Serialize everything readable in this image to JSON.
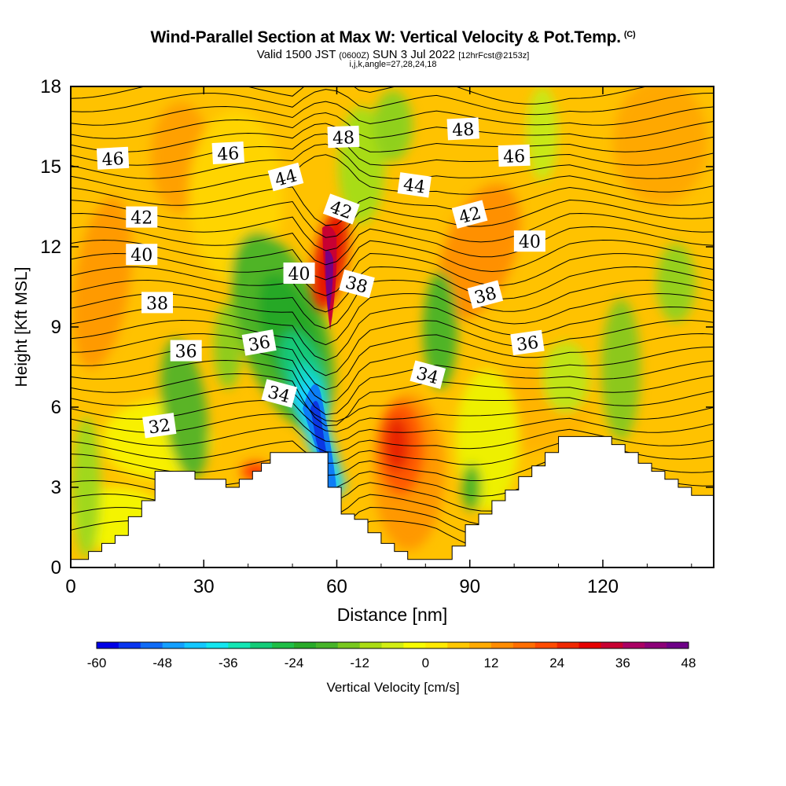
{
  "header": {
    "title": "Wind-Parallel Section at Max W: Vertical Velocity & Pot.Temp.",
    "copyright": "(C)",
    "valid_prefix": "Valid 1500 JST",
    "valid_utc": "(0600Z)",
    "valid_date": "SUN 3 Jul 2022",
    "forecast": "[12hrFcst@2153z]",
    "indices": "i,j,k,angle=27,28,24,18"
  },
  "chart_data": {
    "type": "heatmap",
    "title": "Wind-Parallel Section at Max W: Vertical Velocity & Pot.Temp.",
    "xlabel": "Distance [nm]",
    "ylabel": "Height [Kft MSL]",
    "xlim": [
      0,
      145
    ],
    "ylim": [
      0,
      18
    ],
    "xticks": [
      0,
      30,
      60,
      90,
      120
    ],
    "yticks": [
      0,
      3,
      6,
      9,
      12,
      15,
      18
    ],
    "colorbar": {
      "label": "Vertical Velocity [cm/s]",
      "min": -60,
      "max": 48,
      "step": 4,
      "tick_labels": [
        -60,
        -48,
        -36,
        -24,
        -12,
        0,
        12,
        24,
        36,
        48
      ],
      "colors": [
        "#0000e6",
        "#0a36f0",
        "#0f6cf7",
        "#14a0ff",
        "#14c8ff",
        "#14e6f0",
        "#14e6b4",
        "#14cc78",
        "#1ebe46",
        "#28aa28",
        "#46b428",
        "#78c81e",
        "#aadc14",
        "#d2ee14",
        "#f8fc00",
        "#ffea00",
        "#ffc800",
        "#ffaa00",
        "#ff8c00",
        "#ff6e00",
        "#ff4b00",
        "#f02800",
        "#e60000",
        "#c80032",
        "#aa0064",
        "#8c0078",
        "#6e0087"
      ]
    },
    "terrain_profile": [
      [
        0,
        0.3
      ],
      [
        4,
        0.3
      ],
      [
        4,
        0.6
      ],
      [
        7,
        0.6
      ],
      [
        7,
        0.9
      ],
      [
        10,
        0.9
      ],
      [
        10,
        1.2
      ],
      [
        13,
        1.2
      ],
      [
        13,
        1.9
      ],
      [
        16,
        1.9
      ],
      [
        16,
        2.5
      ],
      [
        19,
        2.5
      ],
      [
        19,
        3.6
      ],
      [
        28,
        3.6
      ],
      [
        28,
        3.3
      ],
      [
        35,
        3.3
      ],
      [
        35,
        3.0
      ],
      [
        38,
        3.0
      ],
      [
        38,
        3.3
      ],
      [
        41,
        3.3
      ],
      [
        41,
        3.6
      ],
      [
        43,
        3.6
      ],
      [
        43,
        3.9
      ],
      [
        45,
        3.9
      ],
      [
        45,
        4.3
      ],
      [
        58,
        4.3
      ],
      [
        58,
        3.0
      ],
      [
        61,
        3.0
      ],
      [
        61,
        2.0
      ],
      [
        64,
        2.0
      ],
      [
        64,
        1.8
      ],
      [
        67,
        1.8
      ],
      [
        67,
        1.3
      ],
      [
        70,
        1.3
      ],
      [
        70,
        0.9
      ],
      [
        73,
        0.9
      ],
      [
        73,
        0.6
      ],
      [
        76,
        0.6
      ],
      [
        76,
        0.3
      ],
      [
        86,
        0.3
      ],
      [
        86,
        0.8
      ],
      [
        89,
        0.8
      ],
      [
        89,
        1.6
      ],
      [
        92,
        1.6
      ],
      [
        92,
        2.0
      ],
      [
        95,
        2.0
      ],
      [
        95,
        2.5
      ],
      [
        98,
        2.5
      ],
      [
        98,
        2.9
      ],
      [
        101,
        2.9
      ],
      [
        101,
        3.4
      ],
      [
        104,
        3.4
      ],
      [
        104,
        3.8
      ],
      [
        107,
        3.8
      ],
      [
        107,
        4.3
      ],
      [
        110,
        4.3
      ],
      [
        110,
        4.9
      ],
      [
        122,
        4.9
      ],
      [
        122,
        4.6
      ],
      [
        125,
        4.6
      ],
      [
        125,
        4.3
      ],
      [
        128,
        4.3
      ],
      [
        128,
        3.9
      ],
      [
        131,
        3.9
      ],
      [
        131,
        3.6
      ],
      [
        134,
        3.6
      ],
      [
        134,
        3.3
      ],
      [
        137,
        3.3
      ],
      [
        137,
        3.0
      ],
      [
        140,
        3.0
      ],
      [
        140,
        2.7
      ],
      [
        145,
        2.7
      ]
    ],
    "isentrope_labels": [
      {
        "text": "46",
        "x": 9.5,
        "y": 15.3,
        "angle": -3
      },
      {
        "text": "46",
        "x": 35.5,
        "y": 15.5,
        "angle": -3
      },
      {
        "text": "44",
        "x": 48.5,
        "y": 14.6,
        "angle": -15
      },
      {
        "text": "48",
        "x": 61.5,
        "y": 16.1,
        "angle": -2
      },
      {
        "text": "42",
        "x": 61,
        "y": 13.4,
        "angle": 20
      },
      {
        "text": "44",
        "x": 77.5,
        "y": 14.3,
        "angle": 8
      },
      {
        "text": "48",
        "x": 88.5,
        "y": 16.4,
        "angle": -3
      },
      {
        "text": "46",
        "x": 100,
        "y": 15.4,
        "angle": -2
      },
      {
        "text": "42",
        "x": 16,
        "y": 13.1,
        "angle": 0
      },
      {
        "text": "42",
        "x": 90,
        "y": 13.2,
        "angle": -15
      },
      {
        "text": "40",
        "x": 103.5,
        "y": 12.2,
        "angle": 0
      },
      {
        "text": "40",
        "x": 16,
        "y": 11.7,
        "angle": 0
      },
      {
        "text": "40",
        "x": 51.5,
        "y": 11.0,
        "angle": 0
      },
      {
        "text": "38",
        "x": 64.5,
        "y": 10.6,
        "angle": 15
      },
      {
        "text": "38",
        "x": 93.5,
        "y": 10.2,
        "angle": -15
      },
      {
        "text": "38",
        "x": 19.5,
        "y": 9.9,
        "angle": 0
      },
      {
        "text": "36",
        "x": 26,
        "y": 8.1,
        "angle": 0
      },
      {
        "text": "36",
        "x": 42.5,
        "y": 8.4,
        "angle": -10
      },
      {
        "text": "36",
        "x": 103,
        "y": 8.4,
        "angle": -8
      },
      {
        "text": "34",
        "x": 47,
        "y": 6.5,
        "angle": 15
      },
      {
        "text": "34",
        "x": 80.5,
        "y": 7.2,
        "angle": 15
      },
      {
        "text": "32",
        "x": 20,
        "y": 5.3,
        "angle": -8
      }
    ]
  }
}
